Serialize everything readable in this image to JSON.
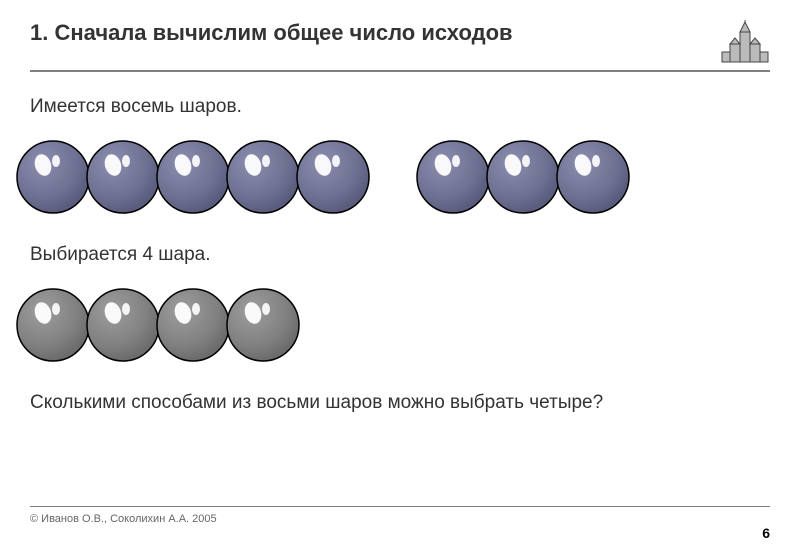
{
  "title": "1. Сначала вычислим общее число исходов",
  "line1": "Имеется восемь шаров.",
  "line2": "Выбирается 4 шара.",
  "line3": "Сколькими способами из восьми шаров можно выбрать четыре?",
  "copyright": "© Иванов О.В., Соколихин А.А. 2005",
  "page_number": "6",
  "balls_row1": {
    "type": "ball-row",
    "group1_count": 5,
    "group2_count": 3,
    "ball_size": 78,
    "overlap": 8,
    "fill": "#6e7091",
    "stroke": "#000000",
    "highlight": "#ffffff"
  },
  "balls_row2": {
    "type": "ball-row",
    "count": 4,
    "ball_size": 78,
    "overlap": 8,
    "fill": "#808080",
    "stroke": "#000000",
    "highlight": "#ffffff"
  },
  "building_icon": {
    "width": 50,
    "height": 50,
    "stroke": "#444444",
    "fill": "#bbbbbb"
  },
  "colors": {
    "title_color": "#333333",
    "text_color": "#333333",
    "hr_color": "#808080",
    "copyright_color": "#666666",
    "page_color": "#000000",
    "background_color": "#ffffff"
  },
  "typography": {
    "title_fontsize": 22,
    "title_weight": "bold",
    "body_fontsize": 19,
    "copyright_fontsize": 11,
    "page_fontsize": 14,
    "font_family": "Arial"
  }
}
